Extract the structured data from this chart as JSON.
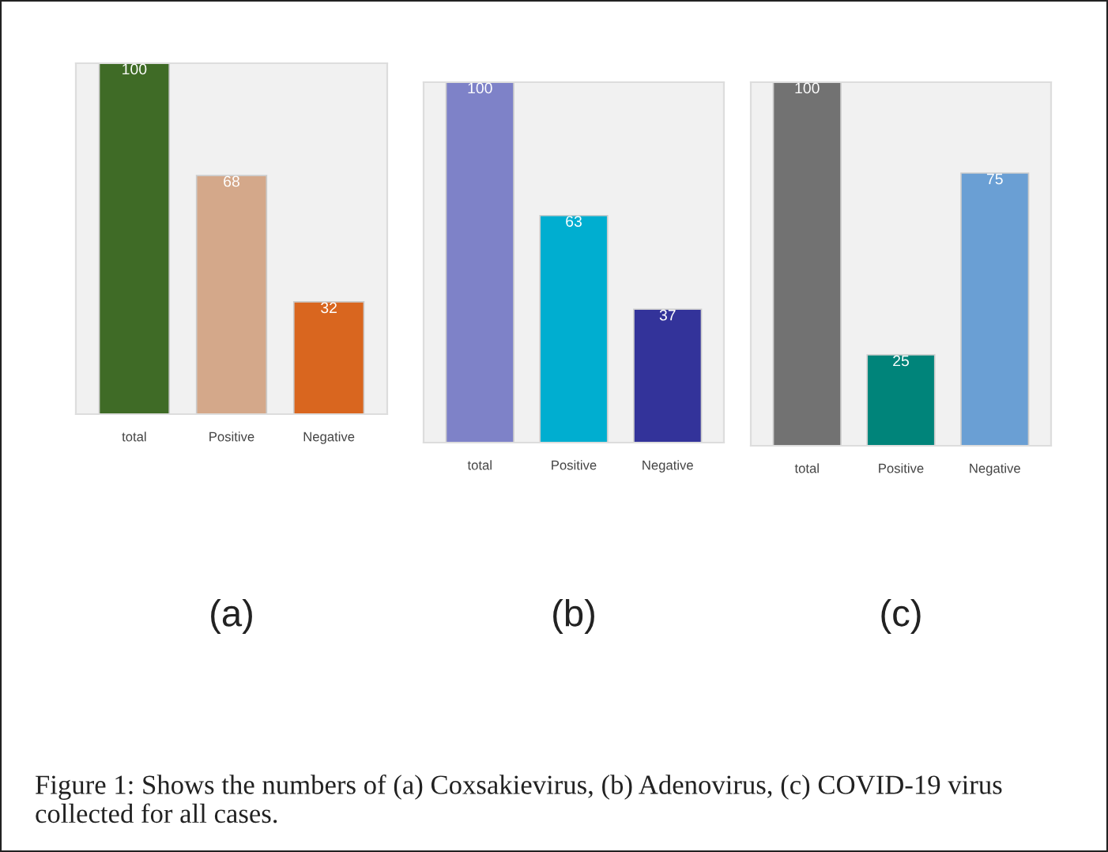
{
  "chart_data": [
    {
      "type": "bar",
      "xlabel": "(a)",
      "categories": [
        "total",
        "Positive",
        "Negative"
      ],
      "values": [
        100,
        68,
        32
      ],
      "colors": [
        "#3f6b26",
        "#d4a88a",
        "#d9661f"
      ],
      "data_labels": true,
      "tick_labels": "x",
      "annotations": [
        "Figure 1: Shows the numbers of (a) Coxsakievirus, (b) Adenovirus, (c) COVID-19 virus collected for all cases."
      ]
    },
    {
      "type": "bar",
      "xlabel": "(b)",
      "categories": [
        "total",
        "Positive",
        "Negative"
      ],
      "values": [
        100,
        63,
        37
      ],
      "colors": [
        "#7e82c8",
        "#00aed0",
        "#33339a"
      ],
      "data_labels": true,
      "tick_labels": "x"
    },
    {
      "type": "bar",
      "xlabel": "(c)",
      "categories": [
        "total",
        "Positive",
        "Negative"
      ],
      "values": [
        100,
        25,
        75
      ],
      "colors": [
        "#727272",
        "#00847a",
        "#6a9fd4"
      ],
      "data_labels": true,
      "tick_labels": "x"
    }
  ]
}
